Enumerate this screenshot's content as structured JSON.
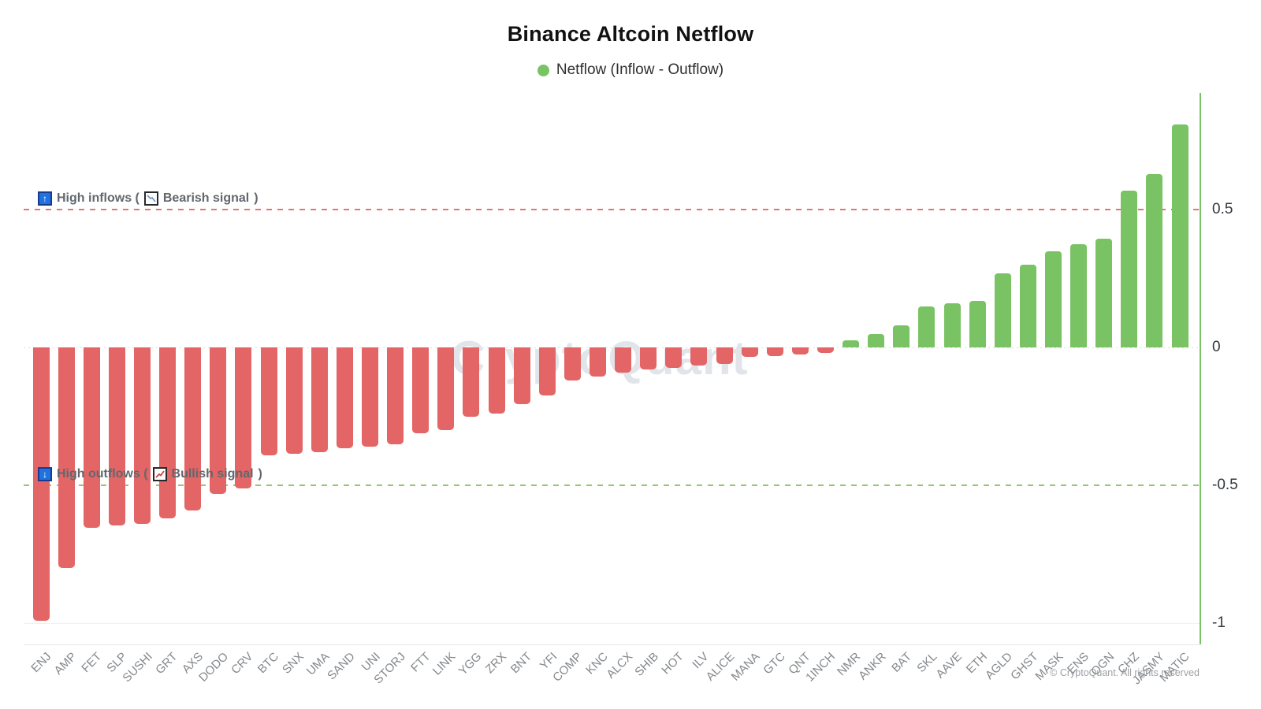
{
  "title": "Binance Altcoin Netflow",
  "legend": {
    "label": "Netflow (Inflow - Outflow)",
    "marker_color": "#7ac364"
  },
  "annotations": {
    "high_inflows": {
      "arrow_glyph": "↑",
      "prefix": "High inflows (",
      "signal": "Bearish signal",
      "suffix": ")",
      "line_value": 0.5,
      "line_color": "#e05b5b"
    },
    "high_outflows": {
      "arrow_glyph": "↓",
      "prefix": "High outflows (",
      "signal": "Bullish signal",
      "suffix": ")",
      "line_value": -0.5,
      "line_color": "#7ab94e"
    }
  },
  "y_axis": {
    "ticks": [
      "0.5",
      "0",
      "-0.5",
      "-1"
    ],
    "tick_values": [
      0.5,
      0,
      -0.5,
      -1
    ]
  },
  "watermark": "CryptoQuant",
  "copyright": "© CryptoQuant. All rights reserved",
  "chart_data": {
    "type": "bar",
    "title": "Binance Altcoin Netflow",
    "series_name": "Netflow (Inflow - Outflow)",
    "categories": [
      "ENJ",
      "AMP",
      "FET",
      "SLP",
      "SUSHI",
      "GRT",
      "AXS",
      "DODO",
      "CRV",
      "BTC",
      "SNX",
      "UMA",
      "SAND",
      "UNI",
      "STORJ",
      "FTT",
      "LINK",
      "YGG",
      "ZRX",
      "BNT",
      "YFI",
      "COMP",
      "KNC",
      "ALCX",
      "SHIB",
      "HOT",
      "ILV",
      "ALICE",
      "MANA",
      "GTC",
      "QNT",
      "1INCH",
      "NMR",
      "ANKR",
      "BAT",
      "SKL",
      "AAVE",
      "ETH",
      "AGLD",
      "GHST",
      "MASK",
      "ENS",
      "OGN",
      "CHZ",
      "JASMY",
      "MATIC"
    ],
    "values": [
      -0.99,
      -0.8,
      -0.655,
      -0.645,
      -0.64,
      -0.62,
      -0.59,
      -0.53,
      -0.51,
      -0.39,
      -0.385,
      -0.38,
      -0.365,
      -0.36,
      -0.35,
      -0.31,
      -0.3,
      -0.25,
      -0.24,
      -0.205,
      -0.175,
      -0.12,
      -0.105,
      -0.09,
      -0.08,
      -0.075,
      -0.065,
      -0.06,
      -0.035,
      -0.03,
      -0.025,
      -0.02,
      0.025,
      0.05,
      0.08,
      0.15,
      0.16,
      0.17,
      0.27,
      0.3,
      0.35,
      0.375,
      0.395,
      0.57,
      0.63,
      0.81
    ],
    "positive_color": "#7ac364",
    "negative_color": "#e36565",
    "ylim": [
      -1.08,
      0.92
    ],
    "grid": "faint horizontal at 0 and -1",
    "legend_position": "top-center",
    "reference_lines": [
      {
        "value": 0.5,
        "style": "dashed",
        "color": "#e05b5b",
        "label": "High inflows (Bearish signal)"
      },
      {
        "value": -0.5,
        "style": "dashed",
        "color": "#7ab94e",
        "label": "High outflows (Bullish signal)"
      }
    ]
  }
}
